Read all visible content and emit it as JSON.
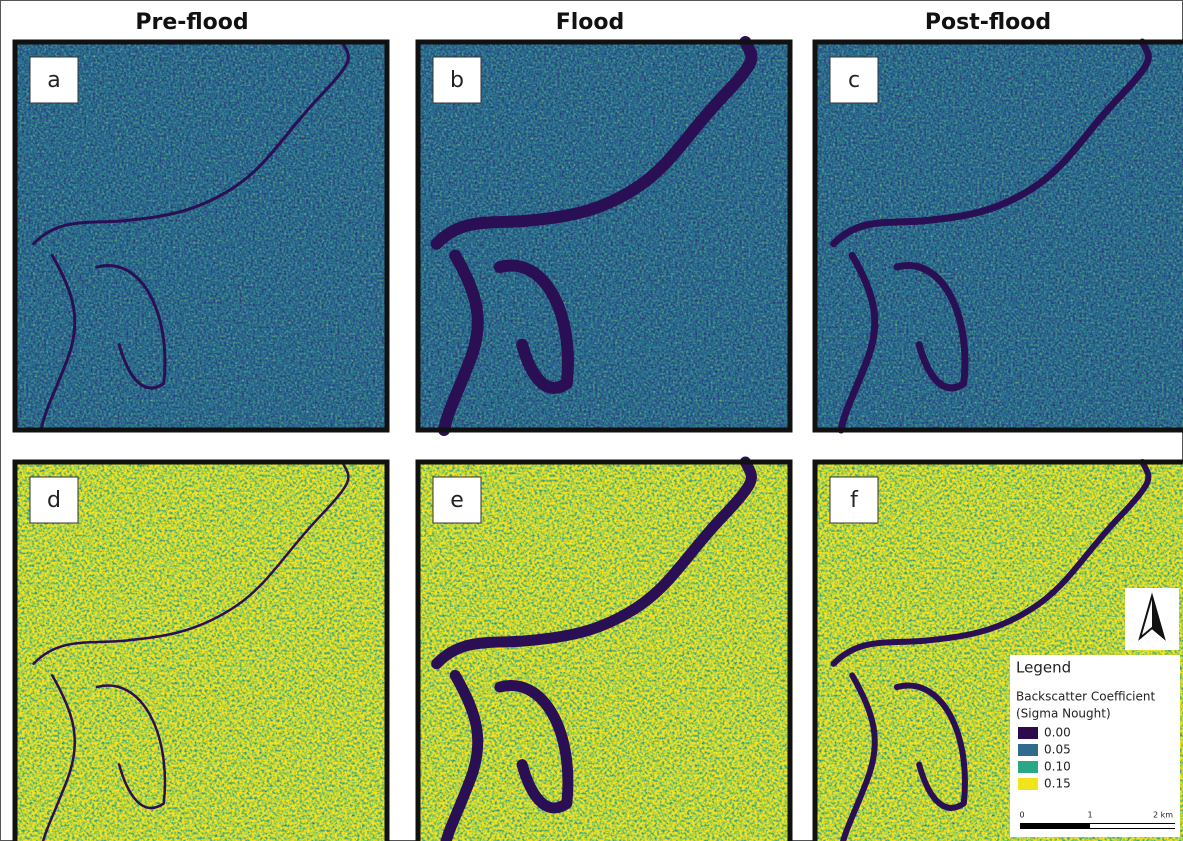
{
  "header": {
    "columns": [
      "Pre-flood",
      "Flood",
      "Post-flood"
    ]
  },
  "panels": [
    "a",
    "b",
    "c",
    "d",
    "e",
    "f"
  ],
  "legend": {
    "title": "Legend",
    "subtitle_line1": "Backscatter Coefficient",
    "subtitle_line2": "(Sigma Nought)",
    "entries": [
      {
        "label": "0.00",
        "color": "#2d0a4e"
      },
      {
        "label": "0.05",
        "color": "#2f6b8e"
      },
      {
        "label": "0.10",
        "color": "#2aa886"
      },
      {
        "label": "0.15",
        "color": "#f2e41c"
      }
    ]
  },
  "scale_bar": {
    "labels": [
      "0",
      "1",
      "2 km"
    ]
  }
}
